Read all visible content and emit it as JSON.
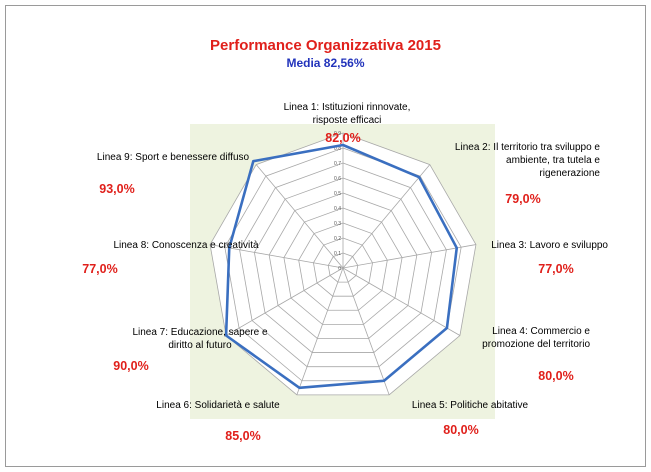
{
  "colors": {
    "title": "#e0201b",
    "subtitle": "#2233bb",
    "series": "#3a6fc0",
    "values": "#e0201b",
    "plot_background": "#eef3e0",
    "grid": "#a8a8a8"
  },
  "chart_data": {
    "type": "radar",
    "title": "Performance Organizzativa 2015",
    "subtitle": "Media 82,56%",
    "rmax": 0.9,
    "ticks": [
      {
        "value": 0,
        "label": "0"
      },
      {
        "value": 0.1,
        "label": "0,1"
      },
      {
        "value": 0.2,
        "label": "0,2"
      },
      {
        "value": 0.3,
        "label": "0,3"
      },
      {
        "value": 0.4,
        "label": "0,4"
      },
      {
        "value": 0.5,
        "label": "0,5"
      },
      {
        "value": 0.6,
        "label": "0,6"
      },
      {
        "value": 0.7,
        "label": "0,7"
      },
      {
        "value": 0.8,
        "label": "0,8"
      },
      {
        "value": 0.9,
        "label": "0,9"
      }
    ],
    "categories": [
      {
        "label_lines": [
          "Linea 1: Istituzioni rinnovate,",
          "risposte efficaci"
        ],
        "value": 0.82,
        "value_label": "82,0%"
      },
      {
        "label_lines": [
          "Linea 2: Il territorio tra sviluppo e",
          "ambiente, tra tutela e",
          "rigenerazione"
        ],
        "value": 0.79,
        "value_label": "79,0%"
      },
      {
        "label_lines": [
          "Linea 3: Lavoro e sviluppo"
        ],
        "value": 0.77,
        "value_label": "77,0%"
      },
      {
        "label_lines": [
          "Linea 4: Commercio e",
          "promozione del territorio"
        ],
        "value": 0.8,
        "value_label": "80,0%"
      },
      {
        "label_lines": [
          "Linea 5: Politiche abitative"
        ],
        "value": 0.8,
        "value_label": "80,0%"
      },
      {
        "label_lines": [
          "Linea 6: Solidarietà e salute"
        ],
        "value": 0.85,
        "value_label": "85,0%"
      },
      {
        "label_lines": [
          "Linea 7: Educazione, sapere e",
          "diritto al futuro"
        ],
        "value": 0.9,
        "value_label": "90,0%"
      },
      {
        "label_lines": [
          "Linea 8: Conoscenza e creatività"
        ],
        "value": 0.77,
        "value_label": "77,0%"
      },
      {
        "label_lines": [
          "Linea 9: Sport e benessere diffuso"
        ],
        "value": 0.93,
        "value_label": "93,0%"
      }
    ]
  }
}
